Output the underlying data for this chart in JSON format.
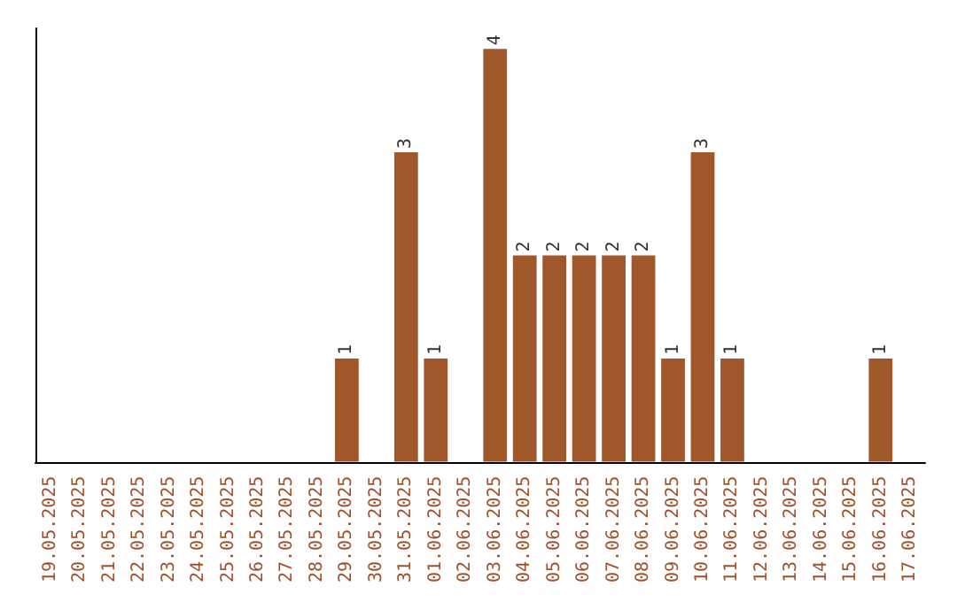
{
  "chart_data": {
    "type": "bar",
    "categories": [
      "19.05.2025",
      "20.05.2025",
      "21.05.2025",
      "22.05.2025",
      "23.05.2025",
      "24.05.2025",
      "25.05.2025",
      "26.05.2025",
      "27.05.2025",
      "28.05.2025",
      "29.05.2025",
      "30.05.2025",
      "31.05.2025",
      "01.06.2025",
      "02.06.2025",
      "03.06.2025",
      "04.06.2025",
      "05.06.2025",
      "06.06.2025",
      "07.06.2025",
      "08.06.2025",
      "09.06.2025",
      "10.06.2025",
      "11.06.2025",
      "12.06.2025",
      "13.06.2025",
      "14.06.2025",
      "15.06.2025",
      "16.06.2025",
      "17.06.2025"
    ],
    "values": [
      0,
      0,
      0,
      0,
      0,
      0,
      0,
      0,
      0,
      0,
      1,
      0,
      3,
      1,
      0,
      4,
      2,
      2,
      2,
      2,
      2,
      1,
      3,
      1,
      0,
      0,
      0,
      0,
      1,
      0
    ],
    "value_labels": [
      null,
      null,
      null,
      null,
      null,
      null,
      null,
      null,
      null,
      null,
      "1",
      null,
      "3",
      "1",
      null,
      "4",
      "2",
      "2",
      "2",
      "2",
      "2",
      "1",
      "3",
      "1",
      null,
      null,
      null,
      null,
      "1",
      null
    ],
    "color": "#a0582a",
    "ylim": [
      0,
      4.2
    ],
    "tick_labels": "x"
  }
}
